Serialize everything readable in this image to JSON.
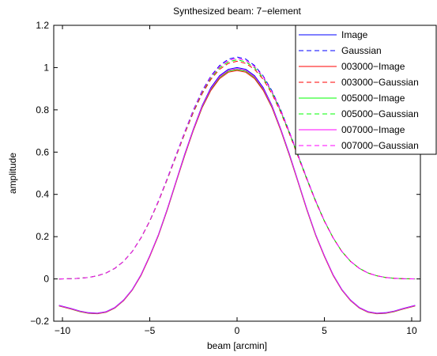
{
  "chart_data": {
    "type": "line",
    "title": "Synthesized beam: 7−element",
    "xlabel": "beam [arcmin]",
    "ylabel": "amplitude",
    "xlim": [
      -10.5,
      10.5
    ],
    "ylim": [
      -0.2,
      1.2
    ],
    "xticks": [
      -10,
      -5,
      0,
      5,
      10
    ],
    "xtick_labels": [
      "−10",
      "−5",
      "0",
      "5",
      "10"
    ],
    "yticks": [
      -0.2,
      0,
      0.2,
      0.4,
      0.6,
      0.8,
      1,
      1.2
    ],
    "ytick_labels": [
      "−0.2",
      "0",
      "0.2",
      "0.4",
      "0.6",
      "0.8",
      "1",
      "1.2"
    ],
    "grid": false,
    "legend_position": "top-right",
    "x": [
      -10.2,
      -9.5,
      -9,
      -8.5,
      -8,
      -7.5,
      -7,
      -6.5,
      -6,
      -5.5,
      -5,
      -4.5,
      -4,
      -3.5,
      -3,
      -2.5,
      -2,
      -1.5,
      -1,
      -0.5,
      0,
      0.5,
      1,
      1.5,
      2,
      2.5,
      3,
      3.5,
      4,
      4.5,
      5,
      5.5,
      6,
      6.5,
      7,
      7.5,
      8,
      8.5,
      9,
      9.5,
      10.2
    ],
    "series": [
      {
        "name": "Image",
        "color": "#0000ff",
        "dash": "solid",
        "values": [
          -0.125,
          -0.14,
          -0.152,
          -0.16,
          -0.162,
          -0.155,
          -0.135,
          -0.1,
          -0.05,
          0.02,
          0.11,
          0.21,
          0.33,
          0.46,
          0.59,
          0.71,
          0.82,
          0.905,
          0.962,
          0.992,
          1.0,
          0.992,
          0.962,
          0.905,
          0.82,
          0.71,
          0.59,
          0.46,
          0.33,
          0.21,
          0.11,
          0.02,
          -0.05,
          -0.1,
          -0.135,
          -0.155,
          -0.162,
          -0.16,
          -0.152,
          -0.14,
          -0.125
        ]
      },
      {
        "name": "Gaussian",
        "color": "#0000ff",
        "dash": "dashed",
        "values": [
          0.0,
          0.001,
          0.003,
          0.007,
          0.015,
          0.028,
          0.05,
          0.083,
          0.13,
          0.195,
          0.275,
          0.37,
          0.475,
          0.585,
          0.695,
          0.8,
          0.89,
          0.96,
          1.01,
          1.04,
          1.05,
          1.04,
          1.01,
          0.96,
          0.89,
          0.8,
          0.695,
          0.585,
          0.475,
          0.37,
          0.275,
          0.195,
          0.13,
          0.083,
          0.05,
          0.028,
          0.015,
          0.007,
          0.003,
          0.001,
          0.0
        ]
      },
      {
        "name": "003000−Image",
        "color": "#ff0000",
        "dash": "solid",
        "values": [
          -0.128,
          -0.143,
          -0.155,
          -0.163,
          -0.165,
          -0.158,
          -0.138,
          -0.103,
          -0.053,
          0.016,
          0.106,
          0.206,
          0.325,
          0.455,
          0.583,
          0.703,
          0.81,
          0.892,
          0.948,
          0.978,
          0.986,
          0.978,
          0.948,
          0.892,
          0.81,
          0.703,
          0.583,
          0.455,
          0.325,
          0.206,
          0.106,
          0.016,
          -0.053,
          -0.103,
          -0.138,
          -0.158,
          -0.165,
          -0.163,
          -0.155,
          -0.143,
          -0.128
        ]
      },
      {
        "name": "003000−Gaussian",
        "color": "#ff0000",
        "dash": "dashed",
        "values": [
          0.0,
          0.001,
          0.003,
          0.007,
          0.015,
          0.028,
          0.05,
          0.083,
          0.13,
          0.194,
          0.273,
          0.366,
          0.47,
          0.578,
          0.686,
          0.788,
          0.876,
          0.944,
          0.992,
          1.02,
          1.03,
          1.02,
          0.992,
          0.944,
          0.876,
          0.788,
          0.686,
          0.578,
          0.47,
          0.366,
          0.273,
          0.194,
          0.13,
          0.083,
          0.05,
          0.028,
          0.015,
          0.007,
          0.003,
          0.001,
          0.0
        ]
      },
      {
        "name": "005000−Image",
        "color": "#00ff00",
        "dash": "solid",
        "values": [
          -0.127,
          -0.142,
          -0.154,
          -0.162,
          -0.164,
          -0.157,
          -0.137,
          -0.102,
          -0.052,
          0.018,
          0.108,
          0.208,
          0.327,
          0.457,
          0.586,
          0.706,
          0.814,
          0.897,
          0.953,
          0.983,
          0.991,
          0.983,
          0.953,
          0.897,
          0.814,
          0.706,
          0.586,
          0.457,
          0.327,
          0.208,
          0.108,
          0.018,
          -0.052,
          -0.102,
          -0.137,
          -0.157,
          -0.164,
          -0.162,
          -0.154,
          -0.142,
          -0.127
        ]
      },
      {
        "name": "005000−Gaussian",
        "color": "#00ff00",
        "dash": "dashed",
        "values": [
          0.0,
          0.001,
          0.003,
          0.007,
          0.015,
          0.028,
          0.05,
          0.083,
          0.13,
          0.195,
          0.274,
          0.368,
          0.472,
          0.581,
          0.69,
          0.793,
          0.882,
          0.951,
          0.999,
          1.027,
          1.037,
          1.027,
          0.999,
          0.951,
          0.882,
          0.793,
          0.69,
          0.581,
          0.472,
          0.368,
          0.274,
          0.195,
          0.13,
          0.083,
          0.05,
          0.028,
          0.015,
          0.007,
          0.003,
          0.001,
          0.0
        ]
      },
      {
        "name": "007000−Image",
        "color": "#ff00ff",
        "dash": "solid",
        "values": [
          -0.126,
          -0.141,
          -0.153,
          -0.161,
          -0.163,
          -0.156,
          -0.136,
          -0.101,
          -0.051,
          0.019,
          0.109,
          0.209,
          0.329,
          0.459,
          0.588,
          0.708,
          0.817,
          0.9,
          0.957,
          0.987,
          0.995,
          0.987,
          0.957,
          0.9,
          0.817,
          0.708,
          0.588,
          0.459,
          0.329,
          0.209,
          0.109,
          0.019,
          -0.051,
          -0.101,
          -0.136,
          -0.156,
          -0.163,
          -0.161,
          -0.153,
          -0.141,
          -0.126
        ]
      },
      {
        "name": "007000−Gaussian",
        "color": "#ff00ff",
        "dash": "dashed",
        "values": [
          0.0,
          0.001,
          0.003,
          0.007,
          0.015,
          0.028,
          0.05,
          0.083,
          0.13,
          0.195,
          0.275,
          0.369,
          0.474,
          0.583,
          0.693,
          0.797,
          0.886,
          0.956,
          1.005,
          1.034,
          1.044,
          1.034,
          1.005,
          0.956,
          0.886,
          0.797,
          0.693,
          0.583,
          0.474,
          0.369,
          0.275,
          0.195,
          0.13,
          0.083,
          0.05,
          0.028,
          0.015,
          0.007,
          0.003,
          0.001,
          0.0
        ]
      }
    ]
  }
}
